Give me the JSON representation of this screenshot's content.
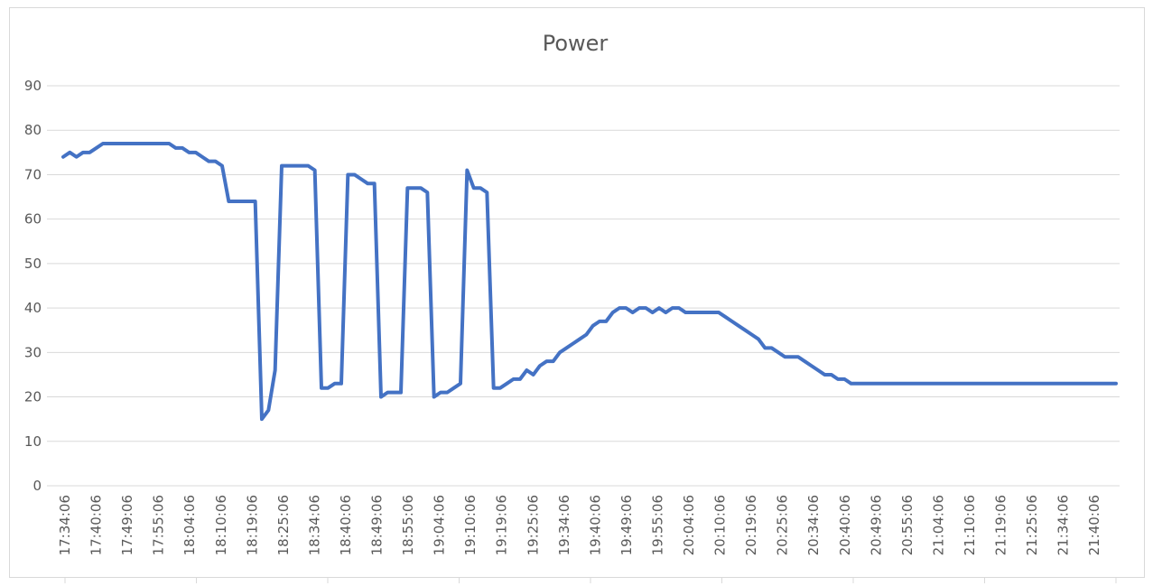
{
  "chart_data": {
    "type": "line",
    "title": "Power",
    "xlabel": "",
    "ylabel": "",
    "ylim": [
      0,
      90
    ],
    "yticks": [
      0,
      10,
      20,
      30,
      40,
      50,
      60,
      70,
      80,
      90
    ],
    "grid": true,
    "legend": "none",
    "line_color": "#4472c4",
    "x_tick_labels": [
      "17:34:06",
      "17:40:06",
      "17:49:06",
      "17:55:06",
      "18:04:06",
      "18:10:06",
      "18:19:06",
      "18:25:06",
      "18:34:06",
      "18:40:06",
      "18:49:06",
      "18:55:06",
      "19:04:06",
      "19:10:06",
      "19:19:06",
      "19:25:06",
      "19:34:06",
      "19:40:06",
      "19:49:06",
      "19:55:06",
      "20:04:06",
      "20:10:06",
      "20:19:06",
      "20:25:06",
      "20:34:06",
      "20:40:06",
      "20:49:06",
      "20:55:06",
      "21:04:06",
      "21:10:06",
      "21:19:06",
      "21:25:06",
      "21:34:06",
      "21:40:06"
    ],
    "series": [
      {
        "values": [
          74,
          75,
          74,
          75,
          75,
          76,
          77,
          77,
          77,
          77,
          77,
          77,
          77,
          77,
          77,
          77,
          77,
          76,
          76,
          75,
          75,
          74,
          73,
          73,
          72,
          64,
          64,
          64,
          64,
          64,
          15,
          17,
          26,
          72,
          72,
          72,
          72,
          72,
          71,
          22,
          22,
          23,
          23,
          70,
          70,
          69,
          68,
          68,
          20,
          21,
          21,
          21,
          67,
          67,
          67,
          66,
          20,
          21,
          21,
          22,
          23,
          71,
          67,
          67,
          66,
          22,
          22,
          23,
          24,
          24,
          26,
          25,
          27,
          28,
          28,
          30,
          31,
          32,
          33,
          34,
          36,
          37,
          37,
          39,
          40,
          40,
          39,
          40,
          40,
          39,
          40,
          39,
          40,
          40,
          39,
          39,
          39,
          39,
          39,
          39,
          38,
          37,
          36,
          35,
          34,
          33,
          31,
          31,
          30,
          29,
          29,
          29,
          28,
          27,
          26,
          25,
          25,
          24,
          24,
          23,
          23,
          23,
          23,
          23,
          23,
          23,
          23,
          23,
          23,
          23,
          23,
          23,
          23,
          23,
          23,
          23,
          23,
          23,
          23,
          23,
          23,
          23,
          23,
          23,
          23,
          23,
          23,
          23,
          23,
          23,
          23,
          23,
          23,
          23,
          23,
          23,
          23,
          23,
          23,
          23
        ]
      }
    ]
  }
}
